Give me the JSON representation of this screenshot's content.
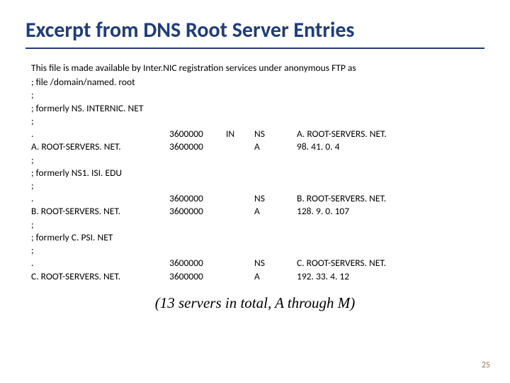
{
  "title": "Excerpt from DNS Root Server Entries",
  "intro": "This file is made available by Inter.NIC registration services under anonymous FTP as",
  "comment_file": "; file /domain/named. root",
  "semi": ";",
  "dot": ".",
  "formerly_a": "; formerly NS. INTERNIC. NET",
  "formerly_b": "; formerly NS1. ISI. EDU",
  "formerly_c": "; formerly C. PSI. NET",
  "a_name": "A. ROOT-SERVERS. NET.",
  "b_name": "B. ROOT-SERVERS. NET.",
  "c_name": "C. ROOT-SERVERS. NET.",
  "ttl": "3600000",
  "in": "IN",
  "ns": "NS",
  "a_rec": "A",
  "a_ns_target": "A. ROOT-SERVERS. NET.",
  "a_ip": "98. 41. 0. 4",
  "b_ns_target": "B. ROOT-SERVERS. NET.",
  "b_ip": "128. 9. 0. 107",
  "c_ns_target": "C. ROOT-SERVERS. NET.",
  "c_ip": "192. 33. 4. 12",
  "footnote": "(13 servers in total, A through M)",
  "pagenum": "25",
  "colors": {
    "title": "#1f3e79",
    "rule": "#1f3e79",
    "text": "#000000",
    "pagenum": "#9a7e56",
    "background": "#ffffff"
  }
}
